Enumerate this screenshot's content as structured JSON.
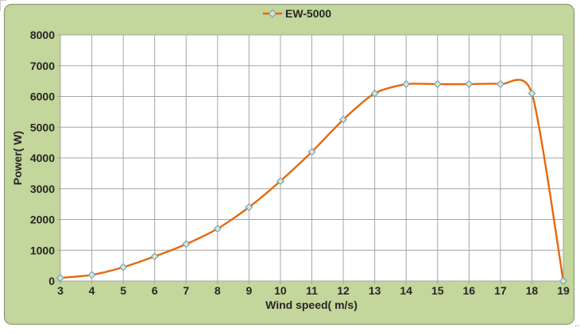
{
  "chart": {
    "legend": {
      "label": "EW-5000"
    },
    "colors": {
      "panel_background": "#c3d69b",
      "panel_border": "#8e9878",
      "plot_background": "#ffffff",
      "gridline": "#a6a6a6",
      "series_line": "#e8670c",
      "marker_fill": "#dce7c3",
      "marker_stroke": "#73a2c5",
      "text": "#262626"
    }
  },
  "chart_data": {
    "type": "line",
    "title": "",
    "x": [
      3,
      4,
      5,
      6,
      7,
      8,
      9,
      10,
      11,
      12,
      13,
      14,
      15,
      16,
      17,
      18,
      19
    ],
    "series": [
      {
        "name": "EW-5000",
        "values": [
          100,
          200,
          450,
          800,
          1200,
          1700,
          2400,
          3250,
          4200,
          5250,
          6100,
          6400,
          6400,
          6400,
          6400,
          6100,
          0
        ]
      }
    ],
    "xlabel": "Wind speed( m/s)",
    "ylabel": "Power( W)",
    "xlim": [
      3,
      19
    ],
    "ylim": [
      0,
      8000
    ],
    "xtick_step": 1,
    "ytick_step": 1000,
    "grid": true,
    "legend_position": "top-center",
    "marker": "diamond",
    "line_smooth": true
  }
}
